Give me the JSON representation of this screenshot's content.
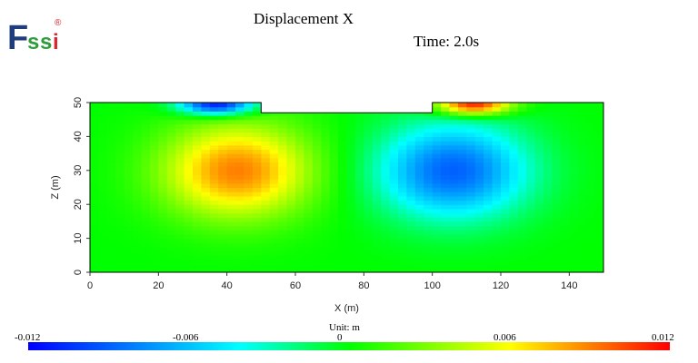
{
  "logo": {
    "text_f": "F",
    "text_s1": "s",
    "text_s2": "s",
    "text_i": "i",
    "registered": "®"
  },
  "header": {
    "title": "Displacement X",
    "time": "Time: 2.0s"
  },
  "chart_data": {
    "type": "heatmap",
    "title": "Displacement X",
    "xlabel": "X (m)",
    "ylabel": "Z (m)",
    "xlim": [
      0,
      150
    ],
    "ylim": [
      0,
      50
    ],
    "x_ticks": [
      "0",
      "20",
      "40",
      "60",
      "80",
      "100",
      "120",
      "140"
    ],
    "y_ticks": [
      "0",
      "10",
      "20",
      "30",
      "40",
      "50"
    ],
    "domain_outline": [
      [
        0,
        0
      ],
      [
        150,
        0
      ],
      [
        150,
        50
      ],
      [
        100,
        50
      ],
      [
        100,
        47
      ],
      [
        50,
        47
      ],
      [
        50,
        50
      ],
      [
        0,
        50
      ],
      [
        0,
        0
      ]
    ],
    "sources": [
      {
        "x": 43,
        "z": 30,
        "value": 0.009
      },
      {
        "x": 106,
        "z": 30,
        "value": -0.009
      },
      {
        "x": 37,
        "z": 49.5,
        "value": -0.012
      },
      {
        "x": 112,
        "z": 49.5,
        "value": 0.012
      }
    ],
    "colorbar": {
      "unit_label": "Unit:  m",
      "min": -0.012,
      "max": 0.012,
      "ticks": [
        "-0.012",
        "-0.006",
        "0",
        "0.006",
        "0.012"
      ],
      "colors": [
        "#0000ff",
        "#00ffff",
        "#00ff00",
        "#ffff00",
        "#ff0000"
      ]
    }
  }
}
